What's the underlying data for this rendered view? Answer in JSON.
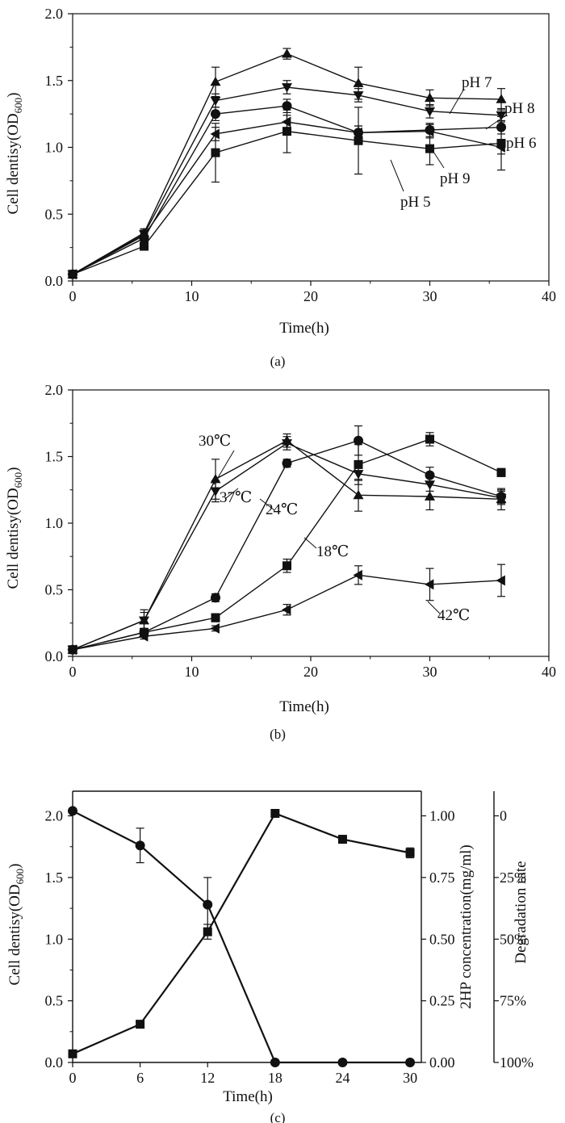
{
  "chart_data": [
    {
      "type": "line",
      "panel_label": "(a)",
      "xlabel": "Time(h)",
      "ylabel_main": "Cell dentisy(OD",
      "ylabel_sub": "600",
      "ylabel_tail": ")",
      "xlim": [
        0,
        40
      ],
      "ylim": [
        0,
        2.0
      ],
      "xticks": [
        0,
        10,
        20,
        30,
        40
      ],
      "yticks": [
        0,
        0.5,
        1.0,
        1.5,
        2.0
      ],
      "ytick_labels": [
        "0.0",
        "0.5",
        "1.0",
        "1.5",
        "2.0"
      ],
      "x": [
        0,
        6,
        12,
        18,
        24,
        30,
        36
      ],
      "series": [
        {
          "name": "pH 5",
          "marker": "square",
          "values": [
            0.05,
            0.26,
            0.96,
            1.12,
            1.05,
            0.99,
            1.03
          ],
          "errors": [
            0.02,
            0.03,
            0.22,
            0.16,
            0.25,
            0.12,
            0.2
          ]
        },
        {
          "name": "pH 6",
          "marker": "circle",
          "values": [
            0.05,
            0.32,
            1.25,
            1.31,
            1.11,
            1.13,
            1.15
          ],
          "errors": [
            0.02,
            0.03,
            0.05,
            0.05,
            0.05,
            0.05,
            0.05
          ]
        },
        {
          "name": "pH 7",
          "marker": "triangle-up",
          "values": [
            0.05,
            0.36,
            1.49,
            1.7,
            1.48,
            1.37,
            1.36
          ],
          "errors": [
            0.02,
            0.03,
            0.11,
            0.04,
            0.12,
            0.06,
            0.08
          ]
        },
        {
          "name": "pH 8",
          "marker": "triangle-down",
          "values": [
            0.05,
            0.35,
            1.35,
            1.45,
            1.39,
            1.27,
            1.24
          ],
          "errors": [
            0.02,
            0.03,
            0.05,
            0.05,
            0.05,
            0.05,
            0.05
          ]
        },
        {
          "name": "pH 9",
          "marker": "triangle-left",
          "values": [
            0.05,
            0.34,
            1.1,
            1.19,
            1.11,
            1.12,
            1.0
          ],
          "errors": [
            0.02,
            0.03,
            0.05,
            0.05,
            0.05,
            0.05,
            0.05
          ]
        }
      ],
      "annotations": [
        "pH 7",
        "pH 8",
        "pH 6",
        "pH 9",
        "pH 5"
      ]
    },
    {
      "type": "line",
      "panel_label": "(b)",
      "xlabel": "Time(h)",
      "ylabel_main": "Cell dentisy(OD",
      "ylabel_sub": "600",
      "ylabel_tail": ")",
      "xlim": [
        0,
        40
      ],
      "ylim": [
        0,
        2.0
      ],
      "xticks": [
        0,
        10,
        20,
        30,
        40
      ],
      "yticks": [
        0,
        0.5,
        1.0,
        1.5,
        2.0
      ],
      "ytick_labels": [
        "0.0",
        "0.5",
        "1.0",
        "1.5",
        "2.0"
      ],
      "x": [
        0,
        6,
        12,
        18,
        24,
        30,
        36
      ],
      "series": [
        {
          "name": "18℃",
          "marker": "square",
          "values": [
            0.05,
            0.18,
            0.29,
            0.68,
            1.44,
            1.63,
            1.38
          ],
          "errors": [
            0.02,
            0.02,
            0.03,
            0.05,
            0.15,
            0.05,
            0.03
          ]
        },
        {
          "name": "24℃",
          "marker": "circle",
          "values": [
            0.05,
            0.18,
            0.44,
            1.45,
            1.62,
            1.36,
            1.2
          ],
          "errors": [
            0.02,
            0.02,
            0.03,
            0.03,
            0.11,
            0.06,
            0.05
          ]
        },
        {
          "name": "30℃",
          "marker": "triangle-up",
          "values": [
            0.05,
            0.27,
            1.33,
            1.62,
            1.21,
            1.2,
            1.18
          ],
          "errors": [
            0.02,
            0.08,
            0.15,
            0.05,
            0.12,
            0.1,
            0.08
          ]
        },
        {
          "name": "37℃",
          "marker": "triangle-down",
          "values": [
            0.05,
            0.27,
            1.24,
            1.6,
            1.37,
            1.29,
            1.19
          ],
          "errors": [
            0.02,
            0.06,
            0.08,
            0.05,
            0.05,
            0.05,
            0.05
          ]
        },
        {
          "name": "42℃",
          "marker": "triangle-left",
          "values": [
            0.05,
            0.15,
            0.21,
            0.35,
            0.61,
            0.54,
            0.57
          ],
          "errors": [
            0.02,
            0.02,
            0.02,
            0.04,
            0.07,
            0.12,
            0.12
          ]
        }
      ],
      "annotations": [
        "30℃",
        "37℃",
        "24℃",
        "18℃",
        "42℃"
      ]
    },
    {
      "type": "line",
      "panel_label": "(c)",
      "xlabel": "Time(h)",
      "ylabel_main": "Cell dentisy(OD",
      "ylabel_sub": "600",
      "ylabel_tail": ")",
      "ylabel_right": "2HP concentration(mg/ml)",
      "ylabel_far_right": "Degradation rate",
      "x": [
        0,
        6,
        12,
        18,
        24,
        30
      ],
      "xlim": [
        0,
        31
      ],
      "xticks": [
        0,
        6,
        12,
        18,
        24,
        30
      ],
      "ylim": [
        0,
        2.2
      ],
      "yticks": [
        0,
        0.5,
        1.0,
        1.5,
        2.0
      ],
      "ytick_labels": [
        "0.0",
        "0.5",
        "1.0",
        "1.5",
        "2.0"
      ],
      "ylim_right": [
        0,
        1.1
      ],
      "yticks_right": [
        0,
        0.25,
        0.5,
        0.75,
        1.0
      ],
      "ytick_labels_right": [
        "0.00",
        "0.25",
        "0.50",
        "0.75",
        "1.00"
      ],
      "yticks_far_right_at": [
        1.0,
        0.75,
        0.5,
        0.25,
        0
      ],
      "ytick_labels_far_right": [
        "0",
        "25%",
        "50%",
        "75%",
        "100%"
      ],
      "series": [
        {
          "name": "Cell density",
          "axis": "left",
          "marker": "square",
          "values": [
            0.07,
            0.31,
            1.06,
            2.02,
            1.81,
            1.7
          ],
          "errors": [
            0.0,
            0.0,
            0.06,
            0.0,
            0.0,
            0.04
          ]
        },
        {
          "name": "2HP concentration",
          "axis": "right",
          "marker": "circle",
          "values": [
            1.02,
            0.88,
            0.64,
            0.0,
            0.0,
            0.0
          ],
          "errors": [
            0.0,
            0.07,
            0.11,
            0.0,
            0.0,
            0.0
          ]
        }
      ]
    }
  ]
}
